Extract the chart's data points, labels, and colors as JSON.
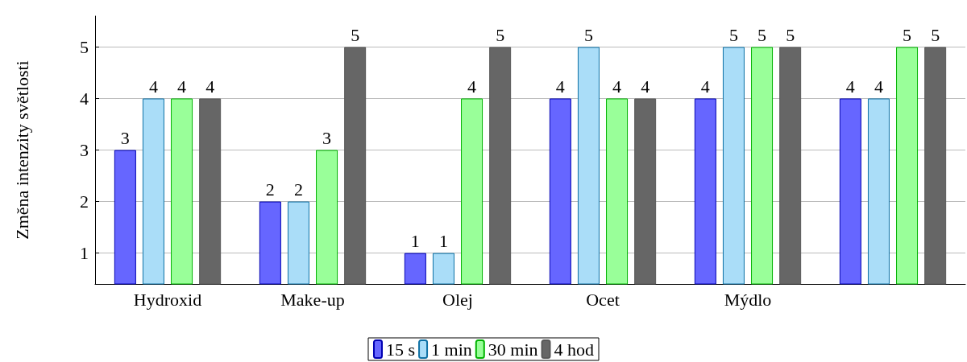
{
  "chart_data": {
    "type": "bar",
    "ylabel": "Změna intenzity světlosti",
    "categories": [
      "Hydroxid",
      "Make-up",
      "Olej",
      "Ocet",
      "Mýdlo",
      null
    ],
    "series": [
      {
        "name": "15 s",
        "color": "#6666ff",
        "values": [
          3,
          2,
          1,
          4,
          4,
          4
        ]
      },
      {
        "name": "1 min",
        "color": "#aaddf8",
        "values": [
          4,
          2,
          1,
          5,
          5,
          4
        ]
      },
      {
        "name": "30 min",
        "color": "#99ff99",
        "values": [
          4,
          3,
          4,
          4,
          5,
          5
        ]
      },
      {
        "name": "4 hod",
        "color": "#666666",
        "values": [
          4,
          5,
          5,
          4,
          5,
          5
        ]
      }
    ],
    "ylim": [
      0.4,
      5.6
    ],
    "yticks": [
      1,
      2,
      3,
      4,
      5
    ],
    "grid": "y",
    "legend": "bottom",
    "data_labels": true
  }
}
